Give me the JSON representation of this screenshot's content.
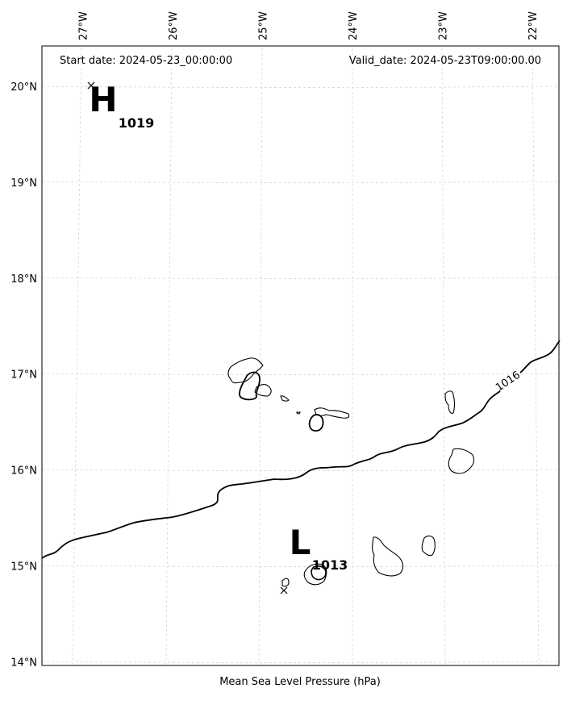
{
  "header": {
    "start_date": "Start date: 2024-05-23_00:00:00",
    "valid_date": "Valid_date: 2024-05-23T09:00:00.00"
  },
  "footer": {
    "caption": "Mean Sea Level Pressure (hPa)"
  },
  "axes": {
    "lon_ticks": [
      {
        "label": "27°W",
        "value": -27
      },
      {
        "label": "26°W",
        "value": -26
      },
      {
        "label": "25°W",
        "value": -25
      },
      {
        "label": "24°W",
        "value": -24
      },
      {
        "label": "23°W",
        "value": -23
      },
      {
        "label": "22°W",
        "value": -22
      }
    ],
    "lat_ticks": [
      {
        "label": "20°N",
        "value": 20
      },
      {
        "label": "19°N",
        "value": 19
      },
      {
        "label": "18°N",
        "value": 18
      },
      {
        "label": "17°N",
        "value": 17
      },
      {
        "label": "16°N",
        "value": 16
      },
      {
        "label": "15°N",
        "value": 15
      },
      {
        "label": "14°N",
        "value": 14
      }
    ]
  },
  "pressure_systems": [
    {
      "symbol": "H",
      "value": "1019",
      "kind": "high"
    },
    {
      "symbol": "L",
      "value": "1013",
      "kind": "low"
    }
  ],
  "isobars": [
    {
      "value": "1016"
    }
  ],
  "colors": {
    "grid": "#d0d0d0",
    "isobar": "#000000",
    "coastline": "#000000",
    "frame": "#000000"
  }
}
